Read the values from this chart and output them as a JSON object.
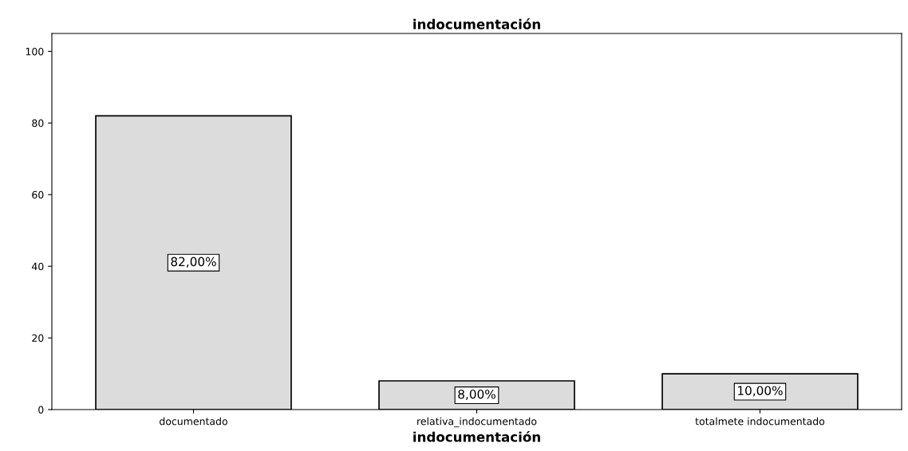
{
  "chart_data": {
    "type": "bar",
    "title": "indocumentación",
    "xlabel": "indocumentación",
    "categories": [
      "documentado",
      "relativa_indocumentado",
      "totalmete indocumentado"
    ],
    "values": [
      82,
      8,
      10
    ],
    "color": "#dcdcdc",
    "value_labels": [
      "82,00%",
      "8,00%",
      "10,00%"
    ],
    "ylim": [
      0,
      105
    ],
    "yticks": [
      0,
      20,
      40,
      60,
      80,
      100
    ],
    "grid": false
  }
}
